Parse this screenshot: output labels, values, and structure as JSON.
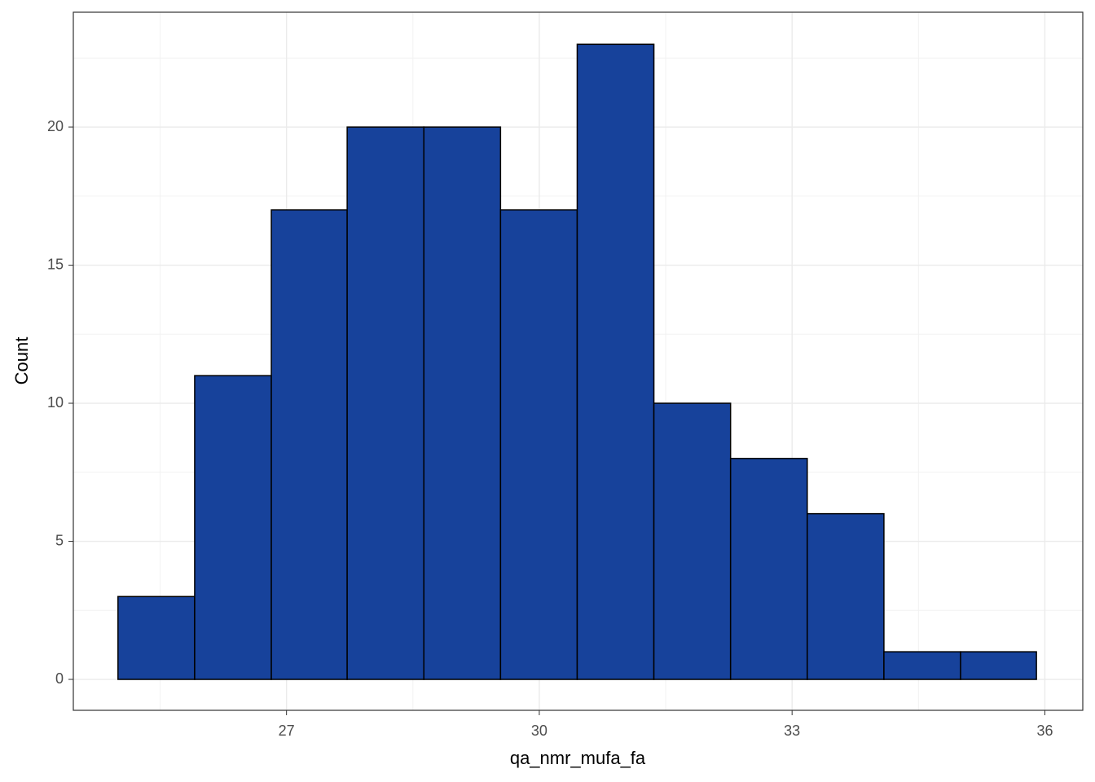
{
  "chart_data": {
    "type": "histogram",
    "x_label": "qa_nmr_mufa_fa",
    "y_label": "Count",
    "bins": [
      25.0,
      25.91,
      26.82,
      27.72,
      28.63,
      29.54,
      30.45,
      31.36,
      32.27,
      33.18,
      34.09,
      35.0,
      35.9
    ],
    "values": [
      3,
      11,
      17,
      20,
      20,
      17,
      23,
      10,
      8,
      6,
      1,
      1
    ],
    "color": "#17429b",
    "xlim": [
      24.47,
      36.45
    ],
    "xticks": [
      27,
      30,
      33,
      36
    ],
    "ylim": [
      -1.12,
      24.16
    ],
    "yticks": [
      0,
      5,
      10,
      15,
      20
    ],
    "grid": true
  }
}
